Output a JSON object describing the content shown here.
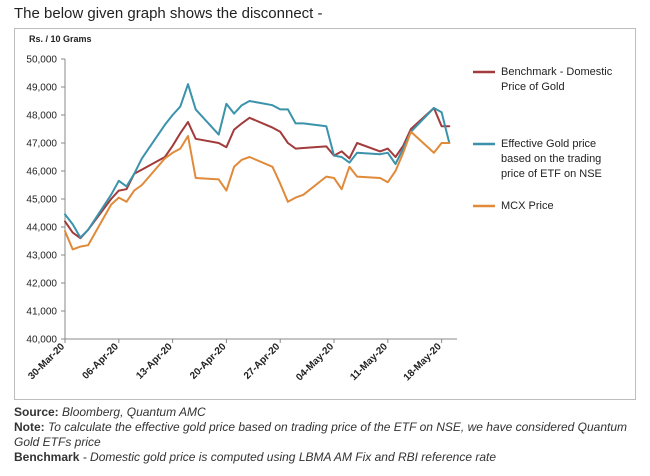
{
  "intro": "The below given graph shows the disconnect -",
  "chart_data": {
    "type": "line",
    "unit_label": "Rs. / 10 Grams",
    "ylim": [
      40000,
      50000
    ],
    "yticks": [
      40000,
      41000,
      42000,
      43000,
      44000,
      45000,
      46000,
      47000,
      48000,
      49000,
      50000
    ],
    "ytick_labels": [
      "40,000",
      "41,000",
      "42,000",
      "43,000",
      "44,000",
      "45,000",
      "46,000",
      "47,000",
      "48,000",
      "49,000",
      "50,000"
    ],
    "xlim": [
      0,
      51
    ],
    "xticks": [
      0,
      7,
      14,
      21,
      28,
      35,
      42,
      49
    ],
    "xtick_labels": [
      "30-Mar-20",
      "06-Apr-20",
      "13-Apr-20",
      "20-Apr-20",
      "27-Apr-20",
      "04-May-20",
      "11-May-20",
      "18-May-20"
    ],
    "grid": false,
    "legend_position": "right",
    "series": [
      {
        "name": "Benchmark - Domestic Price of Gold",
        "legend_lines": [
          "Benchmark - Domestic",
          "Price of Gold"
        ],
        "color": "#a23b3b",
        "x": [
          0,
          1,
          2,
          3,
          6,
          7,
          8,
          9,
          10,
          13,
          14,
          15,
          16,
          17,
          20,
          21,
          22,
          23,
          24,
          27,
          28,
          29,
          30,
          31,
          34,
          35,
          36,
          37,
          38,
          41,
          42,
          43,
          44,
          45,
          48,
          49,
          50
        ],
        "values": [
          44200,
          43800,
          43600,
          43900,
          45000,
          45300,
          45350,
          45900,
          46050,
          46500,
          46900,
          47350,
          47750,
          47150,
          47000,
          46850,
          47480,
          47700,
          47900,
          47550,
          47400,
          47000,
          46800,
          46820,
          46880,
          46550,
          46700,
          46450,
          47000,
          46700,
          46800,
          46500,
          46900,
          47500,
          48250,
          47600,
          47600
        ]
      },
      {
        "name": "Effective Gold price based on the trading price of ETF on NSE",
        "legend_lines": [
          "Effective Gold price",
          "based on the trading",
          "price of ETF on NSE"
        ],
        "color": "#3b93ab",
        "x": [
          0,
          1,
          2,
          3,
          6,
          7,
          8,
          9,
          10,
          13,
          14,
          15,
          16,
          17,
          20,
          21,
          22,
          23,
          24,
          27,
          28,
          29,
          30,
          31,
          34,
          35,
          36,
          37,
          38,
          41,
          42,
          43,
          44,
          45,
          48,
          49,
          50
        ],
        "values": [
          44450,
          44100,
          43620,
          43900,
          45150,
          45650,
          45450,
          45900,
          46450,
          47650,
          48000,
          48300,
          49100,
          48200,
          47300,
          48400,
          48050,
          48350,
          48500,
          48350,
          48200,
          48200,
          47700,
          47700,
          47600,
          46550,
          46500,
          46300,
          46650,
          46600,
          46650,
          46250,
          46800,
          47400,
          48250,
          48100,
          47000
        ]
      },
      {
        "name": "MCX Price",
        "legend_lines": [
          "MCX Price"
        ],
        "color": "#e08a3a",
        "x": [
          0,
          1,
          2,
          3,
          6,
          7,
          8,
          9,
          10,
          13,
          14,
          15,
          16,
          17,
          20,
          21,
          22,
          23,
          24,
          27,
          28,
          29,
          30,
          31,
          34,
          35,
          36,
          37,
          38,
          41,
          42,
          43,
          44,
          45,
          48,
          49,
          50
        ],
        "values": [
          43850,
          43200,
          43300,
          43350,
          44800,
          45050,
          44900,
          45300,
          45500,
          46450,
          46650,
          46800,
          47250,
          45750,
          45700,
          45300,
          46150,
          46400,
          46500,
          46150,
          45550,
          44900,
          45050,
          45150,
          45800,
          45750,
          45350,
          46150,
          45800,
          45750,
          45600,
          46000,
          46650,
          47400,
          46650,
          47000,
          47000
        ]
      }
    ]
  },
  "footer": {
    "source_label": "Source:",
    "source_text": "Bloomberg, Quantum AMC",
    "note_label": "Note:",
    "note_text": "To calculate the effective gold price based on trading price of the ETF on NSE, we have considered Quantum Gold ETFs price",
    "benchmark_label": "Benchmark",
    "benchmark_text": "- Domestic gold price is computed using LBMA AM Fix and RBI reference rate"
  }
}
